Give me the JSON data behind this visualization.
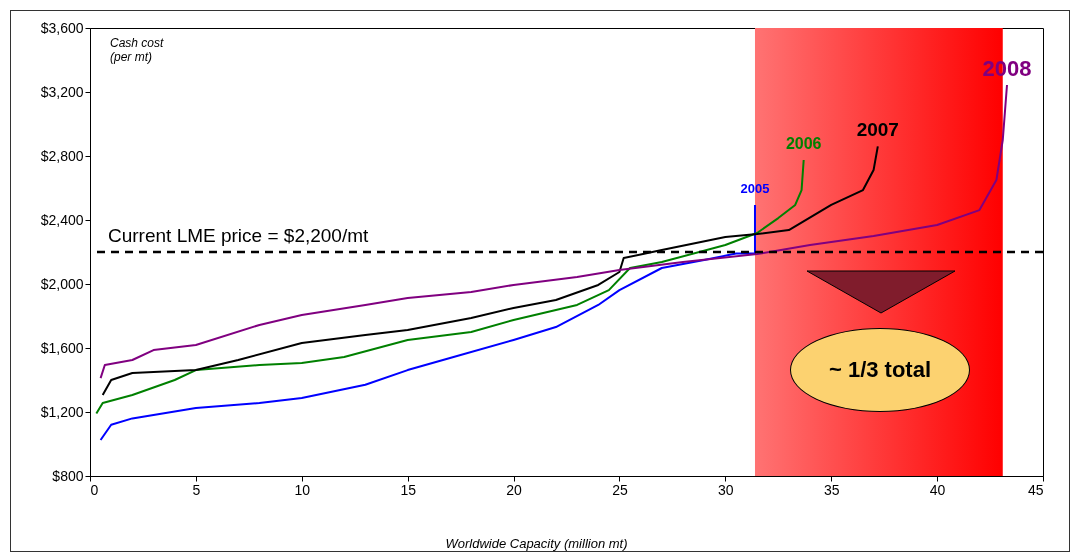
{
  "chart_data": {
    "type": "line",
    "ylabel": "Cash cost\n(per mt)",
    "xlabel": "Worldwide Capacity (million mt)",
    "xlim": [
      0,
      45
    ],
    "xticks": [
      0,
      5,
      10,
      15,
      20,
      25,
      30,
      35,
      40,
      45
    ],
    "ylim": [
      800,
      3600
    ],
    "yticks": [
      {
        "value": 800,
        "label": "$800"
      },
      {
        "value": 1200,
        "label": "$1,200"
      },
      {
        "value": 1600,
        "label": "$1,600"
      },
      {
        "value": 2000,
        "label": "$2,000"
      },
      {
        "value": 2400,
        "label": "$2,400"
      },
      {
        "value": 2800,
        "label": "$2,800"
      },
      {
        "value": 3200,
        "label": "$3,200"
      },
      {
        "value": 3600,
        "label": "$3,600"
      }
    ],
    "grid": false,
    "marker": "none",
    "line_style": "solid",
    "series": [
      {
        "name": "2005",
        "color": "#0000ff",
        "x": [
          0.5,
          1,
          2,
          5,
          8,
          10,
          13,
          15,
          17,
          20,
          22,
          24,
          25,
          27,
          29,
          30.5,
          31.4,
          31.4
        ],
        "values": [
          1025,
          1120,
          1160,
          1225,
          1256,
          1288,
          1370,
          1462,
          1537,
          1650,
          1731,
          1869,
          1962,
          2100,
          2150,
          2190,
          2190,
          2494
        ]
      },
      {
        "name": "2006",
        "color": "#008000",
        "x": [
          0.3,
          0.6,
          2,
          4,
          5,
          8,
          10,
          12,
          15,
          18,
          20,
          23,
          24.5,
          25.5,
          27,
          30,
          31.5,
          32.5,
          33.3,
          33.6,
          33.7
        ],
        "values": [
          1190,
          1256,
          1306,
          1400,
          1462,
          1494,
          1506,
          1544,
          1650,
          1700,
          1775,
          1869,
          1962,
          2100,
          2137,
          2244,
          2319,
          2412,
          2494,
          2587,
          2775
        ]
      },
      {
        "name": "2007",
        "color": "#000000",
        "x": [
          0.6,
          1,
          2,
          5,
          7,
          10,
          13,
          15,
          18,
          20,
          22,
          24,
          25,
          25.2,
          27,
          30,
          31.5,
          33,
          35,
          36.5,
          37,
          37.2
        ],
        "values": [
          1306,
          1400,
          1444,
          1462,
          1525,
          1631,
          1681,
          1712,
          1787,
          1850,
          1900,
          1994,
          2075,
          2162,
          2212,
          2294,
          2312,
          2337,
          2494,
          2587,
          2712,
          2860
        ]
      },
      {
        "name": "2008",
        "color": "#800080",
        "x": [
          0.5,
          0.7,
          2,
          3,
          5,
          8,
          10,
          13,
          15,
          18,
          20,
          23,
          25,
          28,
          31.5,
          34,
          37,
          40,
          42,
          42.8,
          43.1,
          43.3
        ],
        "values": [
          1412,
          1494,
          1525,
          1587,
          1619,
          1744,
          1806,
          1869,
          1912,
          1950,
          1994,
          2044,
          2087,
          2137,
          2187,
          2244,
          2300,
          2369,
          2462,
          2650,
          2900,
          3244
        ]
      }
    ],
    "ref_lines": [
      {
        "axis": "y",
        "value": 2200,
        "label": "Current LME price = $2,200/mt",
        "color": "#000000",
        "line_style": "dashed"
      }
    ],
    "bands": [
      {
        "axis": "x",
        "from": 31.4,
        "to": 43.1,
        "color": "#ff0000"
      }
    ],
    "annotations": [
      "~ 1/3 total"
    ]
  }
}
